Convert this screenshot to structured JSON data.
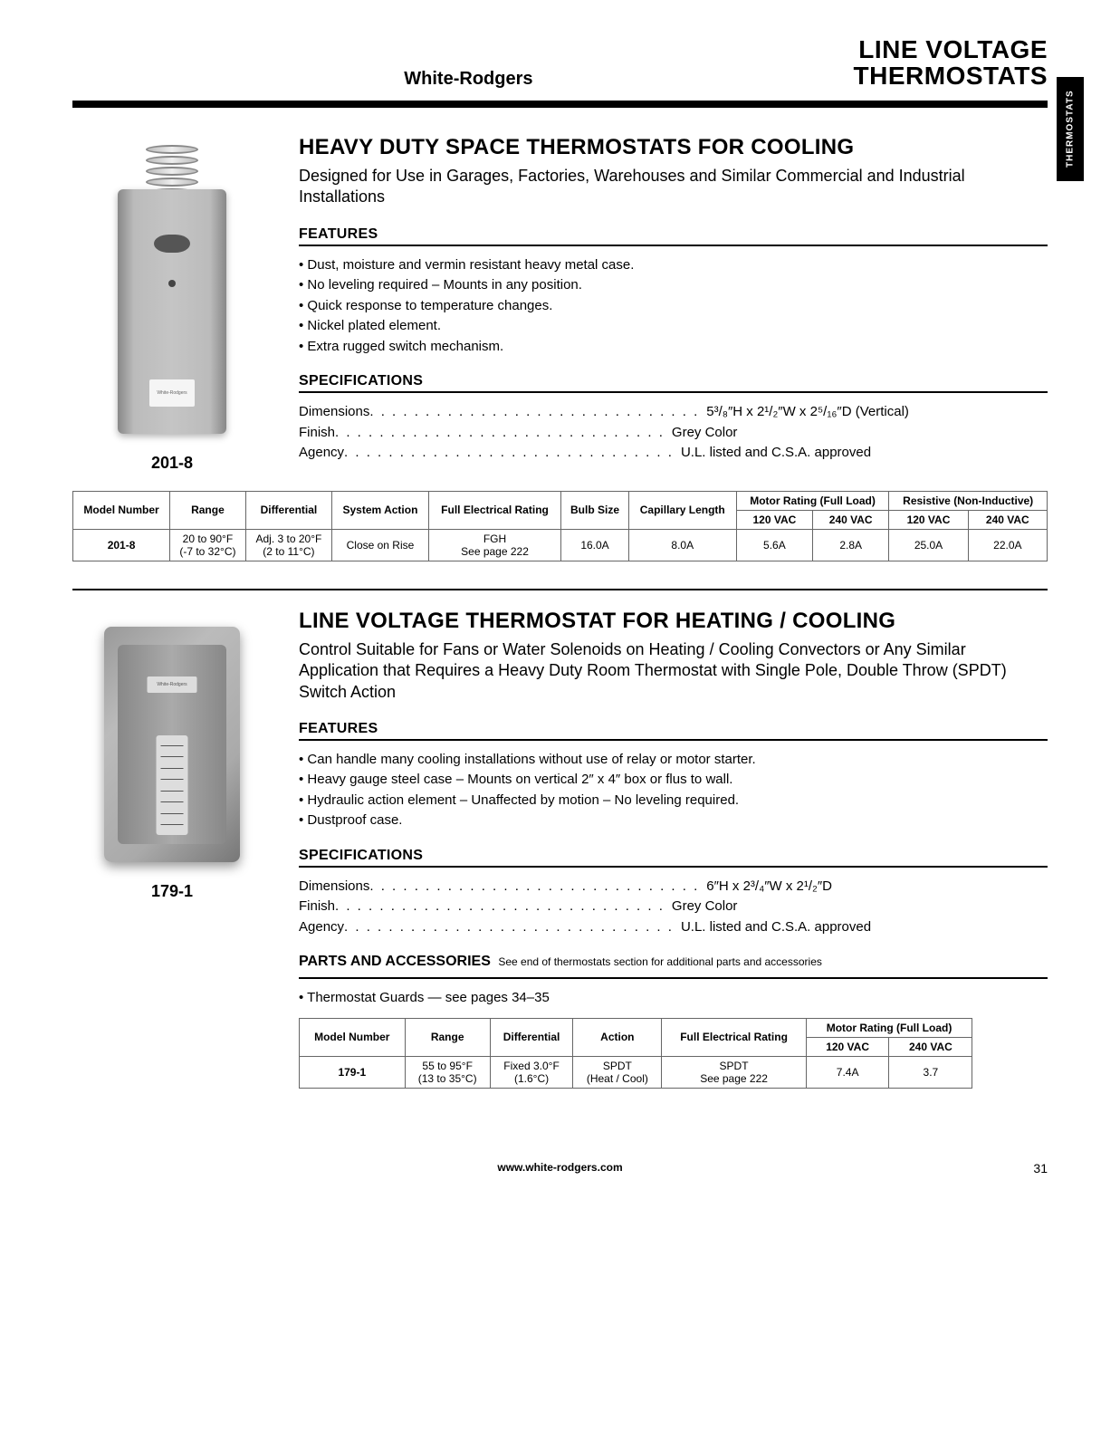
{
  "header": {
    "brand": "White-Rodgers",
    "title_line1": "LINE VOLTAGE",
    "title_line2": "THERMOSTATS",
    "side_tab": "THERMOSTATS"
  },
  "product1": {
    "model": "201-8",
    "heading": "HEAVY DUTY SPACE THERMOSTATS FOR COOLING",
    "description": "Designed for Use in Garages, Factories, Warehouses and Similar Commercial and Industrial Installations",
    "features_label": "FEATURES",
    "features": [
      "Dust, moisture and vermin resistant heavy metal case.",
      "No leveling required – Mounts in any position.",
      "Quick response to temperature changes.",
      "Nickel plated element.",
      "Extra rugged switch mechanism."
    ],
    "specs_label": "SPECIFICATIONS",
    "specs": [
      {
        "label": "Dimensions",
        "value": "5³/₈″H x 2¹/₂″W x 2⁵/₁₆″D (Vertical)"
      },
      {
        "label": "Finish",
        "value": "Grey Color"
      },
      {
        "label": "Agency",
        "value": "U.L. listed and C.S.A. approved"
      }
    ],
    "table": {
      "group_headers": {
        "motor": "Motor Rating (Full Load)",
        "resistive": "Resistive (Non-Inductive)"
      },
      "columns": [
        "Model Number",
        "Range",
        "Differential",
        "System Action",
        "Full Electrical Rating",
        "Bulb Size",
        "Capillary Length",
        "120 VAC",
        "240 VAC",
        "120 VAC",
        "240 VAC"
      ],
      "rows": [
        [
          "201-8",
          "20 to 90°F (-7 to 32°C)",
          "Adj. 3 to 20°F (2 to 11°C)",
          "Close on Rise",
          "FGH See page 222",
          "16.0A",
          "8.0A",
          "5.6A",
          "2.8A",
          "25.0A",
          "22.0A"
        ]
      ]
    }
  },
  "product2": {
    "model": "179-1",
    "heading": "LINE VOLTAGE THERMOSTAT FOR HEATING / COOLING",
    "description": "Control Suitable for Fans or Water Solenoids on Heating / Cooling Convectors or Any Similar Application that Requires a Heavy Duty Room Thermostat with Single Pole, Double Throw (SPDT) Switch Action",
    "features_label": "FEATURES",
    "features": [
      "Can handle many cooling installations without use of relay or motor starter.",
      "Heavy gauge steel case – Mounts on vertical 2″ x 4″ box or flus to wall.",
      "Hydraulic action element – Unaffected by motion – No leveling required.",
      "Dustproof case."
    ],
    "specs_label": "SPECIFICATIONS",
    "specs": [
      {
        "label": "Dimensions",
        "value": "6″H x 2³/₄″W x 2¹/₂″D"
      },
      {
        "label": "Finish",
        "value": "Grey Color"
      },
      {
        "label": "Agency",
        "value": "U.L. listed and C.S.A. approved"
      }
    ],
    "parts_label": "PARTS AND ACCESSORIES",
    "parts_note": "See end of thermostats section for additional parts and accessories",
    "parts_items": [
      "Thermostat Guards — see pages 34–35"
    ],
    "table": {
      "group_headers": {
        "motor": "Motor Rating (Full Load)"
      },
      "columns": [
        "Model Number",
        "Range",
        "Differential",
        "Action",
        "Full Electrical Rating",
        "120 VAC",
        "240 VAC"
      ],
      "rows": [
        [
          "179-1",
          "55 to 95°F (13 to 35°C)",
          "Fixed 3.0°F (1.6°C)",
          "SPDT (Heat / Cool)",
          "SPDT See page 222",
          "7.4A",
          "3.7"
        ]
      ]
    }
  },
  "footer": {
    "url": "www.white-rodgers.com",
    "page": "31"
  },
  "colors": {
    "text": "#000000",
    "bg": "#ffffff",
    "device_grey_light": "#c5c5c5",
    "device_grey_dark": "#888888",
    "border": "#666666"
  }
}
